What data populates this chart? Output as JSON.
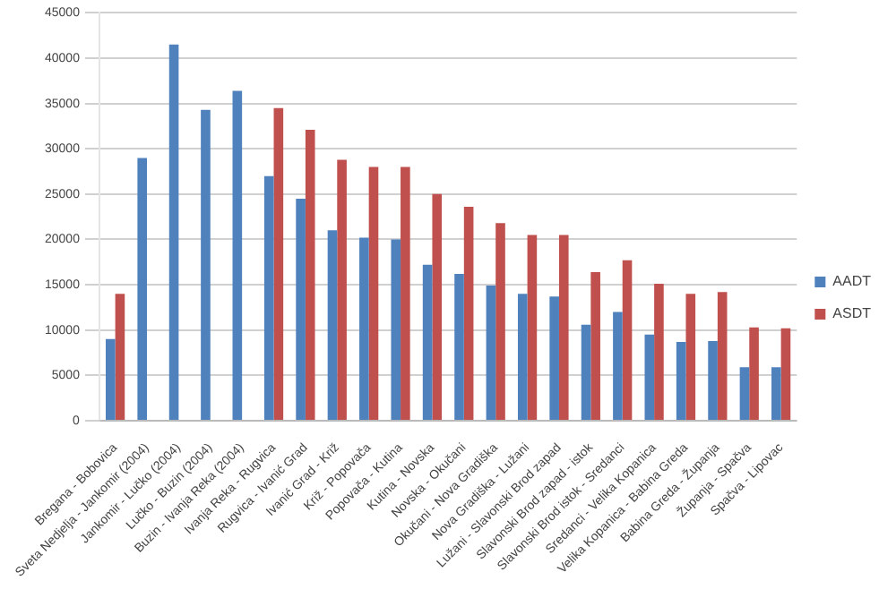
{
  "chart_data": {
    "type": "bar",
    "categories": [
      "Bregana - Bobovica",
      "Sveta Nedjelja - Jankomir (2004)",
      "Jankomir - Lučko (2004)",
      "Lučko - Buzin (2004)",
      "Buzin - Ivanja Reka (2004)",
      "Ivanja Reka - Rugvica",
      "Rugvica - Ivanić Grad",
      "Ivanić Grad - Križ",
      "Križ - Popovača",
      "Popovača - Kutina",
      "Kutina - Novska",
      "Novska - Okučani",
      "Okučani - Nova Gradiška",
      "Nova Gradiška - Lužani",
      "Lužani - Slavonski Brod zapad",
      "Slavonski Brod zapad - istok",
      "Slavonski Brod istok - Sredanci",
      "Sredanci - Velika Kopanica",
      "Velika Kopanica - Babina Greda",
      "Babina Greda - Županja",
      "Županja - Spačva",
      "Spačva - Lipovac"
    ],
    "series": [
      {
        "name": "AADT",
        "color": "#4f81bd",
        "values": [
          9000,
          29000,
          41500,
          34300,
          36400,
          27000,
          24500,
          21000,
          20200,
          20000,
          17200,
          16200,
          14900,
          14000,
          13700,
          10600,
          12000,
          9500,
          8700,
          8800,
          5900,
          5900
        ]
      },
      {
        "name": "ASDT",
        "color": "#c0504d",
        "values": [
          14000,
          null,
          null,
          null,
          null,
          34500,
          32100,
          28800,
          28000,
          28000,
          25000,
          23600,
          21800,
          20500,
          20500,
          16400,
          17700,
          15100,
          14000,
          14200,
          10300,
          10200
        ]
      }
    ],
    "ylim": [
      0,
      45000
    ],
    "yticks": [
      0,
      5000,
      10000,
      15000,
      20000,
      25000,
      30000,
      35000,
      40000,
      45000
    ],
    "grid": "y",
    "legend": "right"
  }
}
